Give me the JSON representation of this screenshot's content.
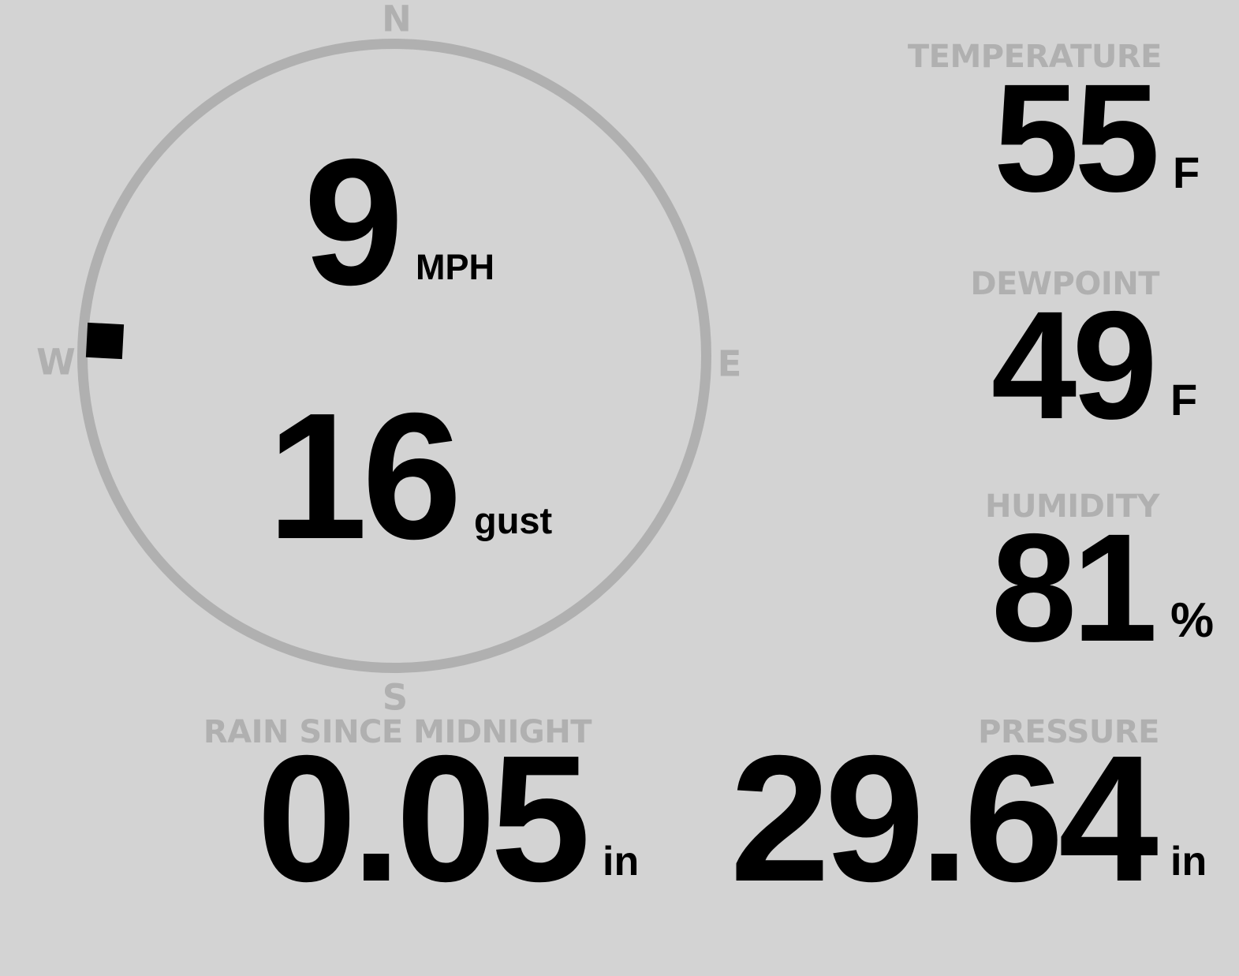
{
  "station": {
    "background_color": "#d3d3d3",
    "label_color": "#b0b0b0",
    "value_color": "#000000"
  },
  "compass": {
    "cardinal": {
      "north": "N",
      "east": "E",
      "south": "S",
      "west": "W"
    },
    "wind_direction_deg": 273,
    "speed": {
      "value": "9",
      "unit": "MPH"
    },
    "gust": {
      "value": "16",
      "unit": "gust"
    }
  },
  "metrics": {
    "temperature": {
      "label": "TEMPERATURE",
      "value": "55",
      "unit": "F"
    },
    "dewpoint": {
      "label": "DEWPOINT",
      "value": "49",
      "unit": "F"
    },
    "humidity": {
      "label": "HUMIDITY",
      "value": "81",
      "unit": "%"
    },
    "rain": {
      "label": "RAIN SINCE MIDNIGHT",
      "value": "0.05",
      "unit": "in"
    },
    "pressure": {
      "label": "PRESSURE",
      "value": "29.64",
      "unit": "in"
    }
  }
}
